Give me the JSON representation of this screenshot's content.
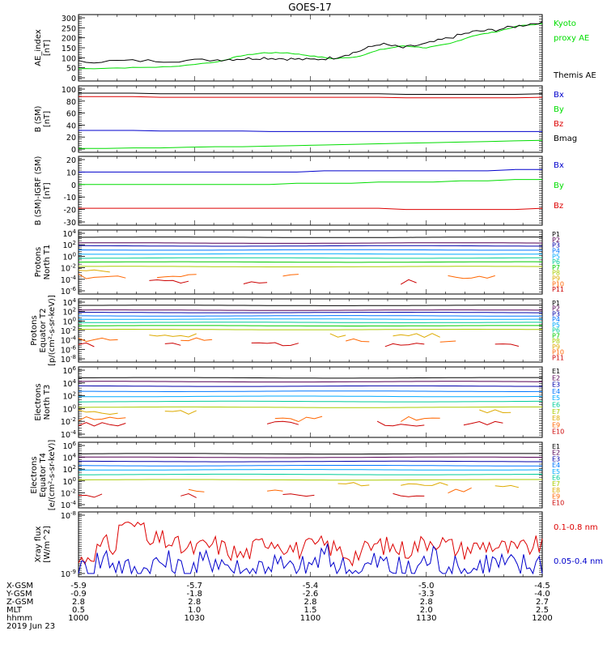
{
  "title": "GOES-17",
  "colors": {
    "black": "#000000",
    "red": "#dd0000",
    "green": "#00dd00",
    "blue": "#0000cc",
    "p": [
      "#000000",
      "#550055",
      "#0000aa",
      "#0077ff",
      "#00aaff",
      "#00cc99",
      "#00cc00",
      "#aacc00",
      "#ddaa00",
      "#ff6600",
      "#cc0000"
    ],
    "e": [
      "#000000",
      "#550055",
      "#0000aa",
      "#0077ff",
      "#00aaff",
      "#00cc99",
      "#aacc00",
      "#ddaa00",
      "#ff6600",
      "#cc0000"
    ]
  },
  "panels": [
    {
      "id": "ae",
      "ylabel": [
        "AE_index",
        "[nT]"
      ],
      "ticks": [
        "300",
        "250",
        "200",
        "150",
        "100",
        "50",
        "0"
      ],
      "legend": [
        {
          "t": "Kyoto",
          "c": "green"
        },
        {
          "t": "proxy AE",
          "c": "green"
        },
        {
          "t": "",
          "c": "black"
        },
        {
          "t": "Themis AE",
          "c": "black"
        }
      ]
    },
    {
      "id": "bsm",
      "ylabel": [
        "B (SM)",
        "[nT]"
      ],
      "ticks": [
        "100",
        "80",
        "60",
        "40",
        "20",
        "0"
      ],
      "legend": [
        {
          "t": "Bx",
          "c": "blue"
        },
        {
          "t": "By",
          "c": "green"
        },
        {
          "t": "Bz",
          "c": "red"
        },
        {
          "t": "Bmag",
          "c": "black"
        }
      ]
    },
    {
      "id": "bigrf",
      "ylabel": [
        "B (SM)-IGRF (SM)",
        "[nT]"
      ],
      "ticks": [
        "20",
        "10",
        "0",
        "-10",
        "-20",
        "-30"
      ],
      "legend": [
        {
          "t": "Bx",
          "c": "blue"
        },
        {
          "t": "By",
          "c": "green"
        },
        {
          "t": "Bz",
          "c": "red"
        }
      ]
    },
    {
      "id": "pn",
      "ylabel": [
        "Protons",
        "North T1"
      ],
      "ticks": [
        "10^4",
        "10^2",
        "10^0",
        "10^-2",
        "10^-4",
        "10^-6"
      ],
      "legend": [
        "P1",
        "P2",
        "P3",
        "P4",
        "P5",
        "P6",
        "P7",
        "P8",
        "P9",
        "P10",
        "P11"
      ]
    },
    {
      "id": "pe",
      "ylabel": [
        "Protons",
        "Equator T2",
        "[p/(cm²-s-sr-keV)]"
      ],
      "ticks": [
        "10^4",
        "10^2",
        "10^0",
        "10^-2",
        "10^-4",
        "10^-6",
        "10^-8"
      ],
      "legend": [
        "P1",
        "P2",
        "P3",
        "P4",
        "P5",
        "P6",
        "P7",
        "P8",
        "P9",
        "P10",
        "P11"
      ]
    },
    {
      "id": "en",
      "ylabel": [
        "Electrons",
        "North T3"
      ],
      "ticks": [
        "10^6",
        "10^4",
        "10^2",
        "10^0",
        "10^-2",
        "10^-4"
      ],
      "legend": [
        "E1",
        "E2",
        "E3",
        "E4",
        "E5",
        "E6",
        "E7",
        "E8",
        "E9",
        "E10"
      ]
    },
    {
      "id": "ee",
      "ylabel": [
        "Electrons",
        "Equator T4",
        "[e/(cm²-s-sr-keV)]"
      ],
      "ticks": [
        "10^6",
        "10^4",
        "10^2",
        "10^0",
        "10^-2",
        "10^-4"
      ],
      "legend": [
        "E1",
        "E2",
        "E3",
        "E4",
        "E5",
        "E6",
        "E7",
        "E8",
        "E9",
        "E10"
      ]
    },
    {
      "id": "xray",
      "ylabel": [
        "Xray flux",
        "[W/m^2]"
      ],
      "ticks": [
        "10^-8",
        "10^-9"
      ],
      "legend": [
        {
          "t": "0.1-0.8 nm",
          "c": "red"
        },
        {
          "t": "0.05-0.4 nm",
          "c": "blue"
        }
      ]
    }
  ],
  "bottom_axis": {
    "row_labels": [
      "X-GSM",
      "Y-GSM",
      "Z-GSM",
      "MLT",
      "hhmm",
      "2019 Jun 23"
    ],
    "columns": [
      [
        "-5.9",
        "-0.9",
        "2.8",
        "0.5",
        "1000"
      ],
      [
        "-5.7",
        "-1.8",
        "2.8",
        "1.0",
        "1030"
      ],
      [
        "-5.4",
        "-2.6",
        "2.8",
        "1.5",
        "1100"
      ],
      [
        "-5.0",
        "-3.3",
        "2.8",
        "2.0",
        "1130"
      ],
      [
        "-4.5",
        "-4.0",
        "2.7",
        "2.5",
        "1200"
      ]
    ]
  },
  "chart_data": [
    {
      "type": "line",
      "title": "GOES-17",
      "ylabel": "AE_index [nT]",
      "ylim": [
        0,
        300
      ],
      "x": [
        0,
        0.1,
        0.2,
        0.3,
        0.35,
        0.4,
        0.45,
        0.5,
        0.55,
        0.6,
        0.65,
        0.7,
        0.75,
        0.8,
        0.85,
        0.9,
        0.95,
        1.0
      ],
      "series": [
        {
          "name": "Kyoto proxy AE",
          "values": [
            45,
            50,
            55,
            80,
            110,
            125,
            125,
            110,
            95,
            105,
            140,
            160,
            150,
            170,
            210,
            230,
            260,
            270
          ]
        },
        {
          "name": "Themis AE",
          "values": [
            80,
            85,
            85,
            90,
            95,
            100,
            95,
            90,
            100,
            130,
            170,
            150,
            170,
            200,
            230,
            240,
            260,
            280
          ]
        }
      ]
    },
    {
      "type": "line",
      "ylabel": "B (SM) [nT]",
      "ylim": [
        -3,
        100
      ],
      "series": [
        {
          "name": "Bx",
          "values": [
            29,
            29,
            29,
            28,
            28,
            28,
            28,
            27,
            27,
            27,
            27,
            27,
            27,
            27,
            27,
            27,
            27,
            27
          ]
        },
        {
          "name": "By",
          "values": [
            -2,
            -2,
            -1,
            -1,
            0,
            1,
            1,
            2,
            3,
            4,
            5,
            6,
            7,
            8,
            9,
            10,
            11,
            12
          ]
        },
        {
          "name": "Bz",
          "values": [
            87,
            87,
            87,
            86,
            86,
            86,
            86,
            86,
            86,
            86,
            86,
            86,
            85,
            85,
            85,
            85,
            85,
            86
          ]
        },
        {
          "name": "Bmag",
          "values": [
            93,
            93,
            93,
            92,
            92,
            92,
            92,
            92,
            92,
            92,
            92,
            92,
            91,
            91,
            91,
            91,
            91,
            92
          ]
        }
      ]
    },
    {
      "type": "line",
      "ylabel": "B (SM)-IGRF (SM) [nT]",
      "ylim": [
        -30,
        20
      ],
      "series": [
        {
          "name": "Bx",
          "values": [
            10,
            10,
            10,
            10,
            10,
            10,
            10,
            10,
            10,
            11,
            11,
            11,
            11,
            11,
            11,
            11,
            12,
            12
          ]
        },
        {
          "name": "By",
          "values": [
            0,
            0,
            0,
            0,
            0,
            0,
            0,
            0,
            1,
            1,
            1,
            2,
            2,
            2,
            3,
            3,
            4,
            4
          ]
        },
        {
          "name": "Bz",
          "values": [
            -19,
            -19,
            -19,
            -19,
            -19,
            -19,
            -19,
            -19,
            -19,
            -19,
            -19,
            -19,
            -20,
            -20,
            -20,
            -20,
            -20,
            -19
          ]
        }
      ]
    },
    {
      "type": "line",
      "ylabel": "Protons North T1",
      "yscale": "log",
      "series_levels_log10": [
        3.3,
        2.3,
        1.8,
        1.1,
        0.4,
        -0.3,
        -1.0,
        -1.8,
        -2.8,
        -3.5,
        -4.5
      ]
    },
    {
      "type": "line",
      "ylabel": "Protons Equator T2 [p/(cm²-s-sr-keV)]",
      "yscale": "log",
      "series_levels_log10": [
        3.3,
        2.3,
        1.8,
        1.1,
        0.4,
        -0.3,
        -1.0,
        -1.8,
        -3.0,
        -4.0,
        -5.0
      ]
    },
    {
      "type": "line",
      "ylabel": "Electrons North T3",
      "yscale": "log",
      "series_levels_log10": [
        4.8,
        4.2,
        3.5,
        2.7,
        1.9,
        1.1,
        0.2,
        -0.6,
        -1.6,
        -2.4
      ]
    },
    {
      "type": "line",
      "ylabel": "Electrons Equator T4 [e/(cm²-s-sr-keV)]",
      "yscale": "log",
      "series_levels_log10": [
        4.6,
        4.0,
        3.3,
        2.6,
        1.9,
        1.1,
        0.2,
        -0.7,
        -1.6,
        -2.4
      ]
    },
    {
      "type": "line",
      "ylabel": "Xray flux [W/m^2]",
      "yscale": "log",
      "ylim_log10": [
        -9,
        -8
      ],
      "series": [
        {
          "name": "0.1-0.8 nm",
          "values": [
            -8.8,
            -8.5,
            -8.7,
            -8.4,
            -8.6,
            -8.5,
            -8.7,
            -8.4,
            -8.6,
            -8.5,
            -8.7,
            -8.5,
            -8.6,
            -8.4,
            -8.6,
            -8.5,
            -8.6,
            -8.5
          ]
        },
        {
          "name": "0.05-0.4 nm",
          "values": [
            -9.0,
            -8.7,
            -9.0,
            -8.8,
            -9.0,
            -8.7,
            -9.0,
            -8.8,
            -9.0,
            -8.7,
            -9.0,
            -8.8,
            -9.0,
            -8.7,
            -9.0,
            -8.8,
            -8.9,
            -8.8
          ]
        }
      ]
    }
  ]
}
